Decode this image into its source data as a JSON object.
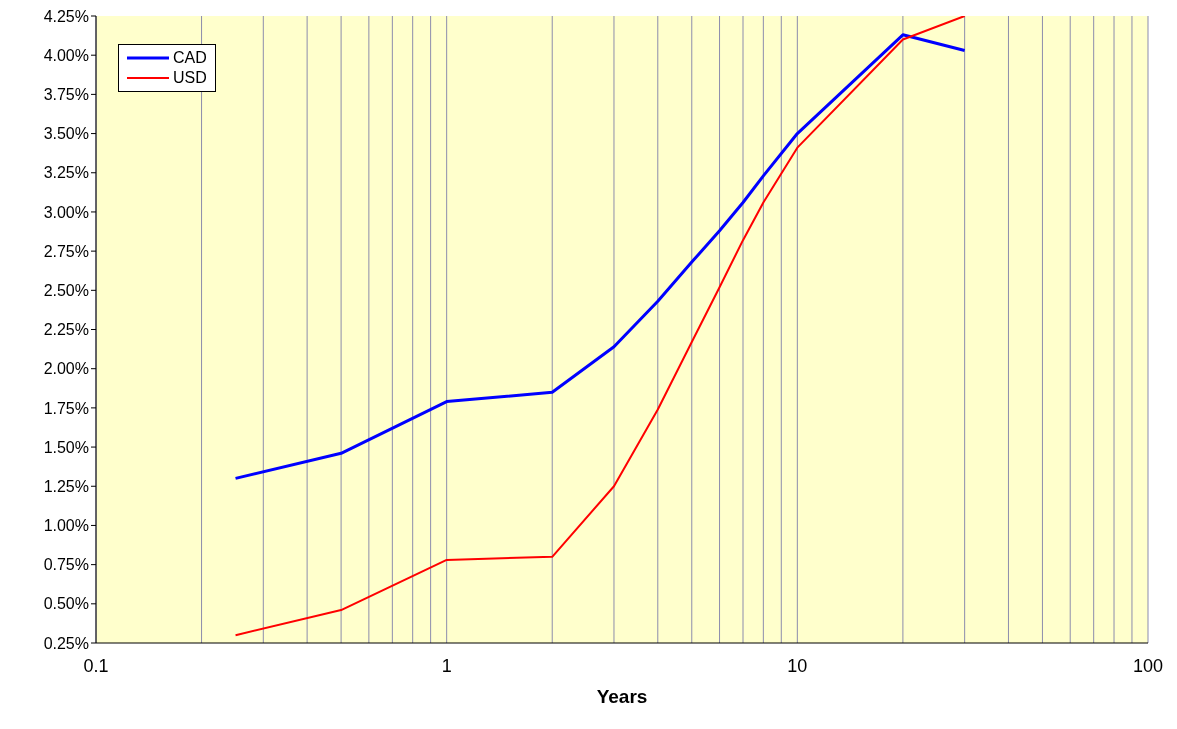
{
  "chart_data": {
    "type": "line",
    "xlabel": "Years",
    "x": [
      0.25,
      0.5,
      1,
      2,
      3,
      4,
      5,
      6,
      7,
      8,
      10,
      20,
      30
    ],
    "series": [
      {
        "name": "CAD",
        "color": "#0000ff",
        "values": [
          1.3,
          1.46,
          1.79,
          1.85,
          2.14,
          2.43,
          2.68,
          2.88,
          3.06,
          3.23,
          3.5,
          4.13,
          4.03
        ]
      },
      {
        "name": "USD",
        "color": "#ff0000",
        "values": [
          0.3,
          0.46,
          0.78,
          0.8,
          1.25,
          1.74,
          2.17,
          2.52,
          2.82,
          3.06,
          3.41,
          4.1,
          4.25
        ]
      }
    ],
    "log": "x",
    "xlim": [
      0.1,
      100
    ],
    "xticks": [
      0.1,
      {
        "value": 0.2,
        "label": null
      },
      {
        "value": 0.3,
        "label": null
      },
      {
        "value": 0.4,
        "label": null
      },
      {
        "value": 0.5,
        "label": null
      },
      {
        "value": 0.6,
        "label": null
      },
      {
        "value": 0.7,
        "label": null
      },
      {
        "value": 0.8,
        "label": null
      },
      {
        "value": 0.9,
        "label": null
      },
      1,
      {
        "value": 2,
        "label": null
      },
      {
        "value": 3,
        "label": null
      },
      {
        "value": 4,
        "label": null
      },
      {
        "value": 5,
        "label": null
      },
      {
        "value": 6,
        "label": null
      },
      {
        "value": 7,
        "label": null
      },
      {
        "value": 8,
        "label": null
      },
      {
        "value": 9,
        "label": null
      },
      10,
      {
        "value": 20,
        "label": null
      },
      {
        "value": 30,
        "label": null
      },
      {
        "value": 40,
        "label": null
      },
      {
        "value": 50,
        "label": null
      },
      {
        "value": 60,
        "label": null
      },
      {
        "value": 70,
        "label": null
      },
      {
        "value": 80,
        "label": null
      },
      {
        "value": 90,
        "label": null
      },
      100
    ],
    "ylim": [
      0.25,
      4.25
    ],
    "yticks": [
      {
        "value": 0.25,
        "label": "0.25%"
      },
      {
        "value": 0.5,
        "label": "0.50%"
      },
      {
        "value": 0.75,
        "label": "0.75%"
      },
      {
        "value": 1.0,
        "label": "1.00%"
      },
      {
        "value": 1.25,
        "label": "1.25%"
      },
      {
        "value": 1.5,
        "label": "1.50%"
      },
      {
        "value": 1.75,
        "label": "1.75%"
      },
      {
        "value": 2.0,
        "label": "2.00%"
      },
      {
        "value": 2.25,
        "label": "2.25%"
      },
      {
        "value": 2.5,
        "label": "2.50%"
      },
      {
        "value": 2.75,
        "label": "2.75%"
      },
      {
        "value": 3.0,
        "label": "3.00%"
      },
      {
        "value": 3.25,
        "label": "3.25%"
      },
      {
        "value": 3.5,
        "label": "3.50%"
      },
      {
        "value": 3.75,
        "label": "3.75%"
      },
      {
        "value": 4.0,
        "label": "4.00%"
      },
      {
        "value": 4.25,
        "label": "4.25%"
      }
    ],
    "grid": "x",
    "legend": "top left",
    "marker": "none",
    "line_style": "solid"
  }
}
